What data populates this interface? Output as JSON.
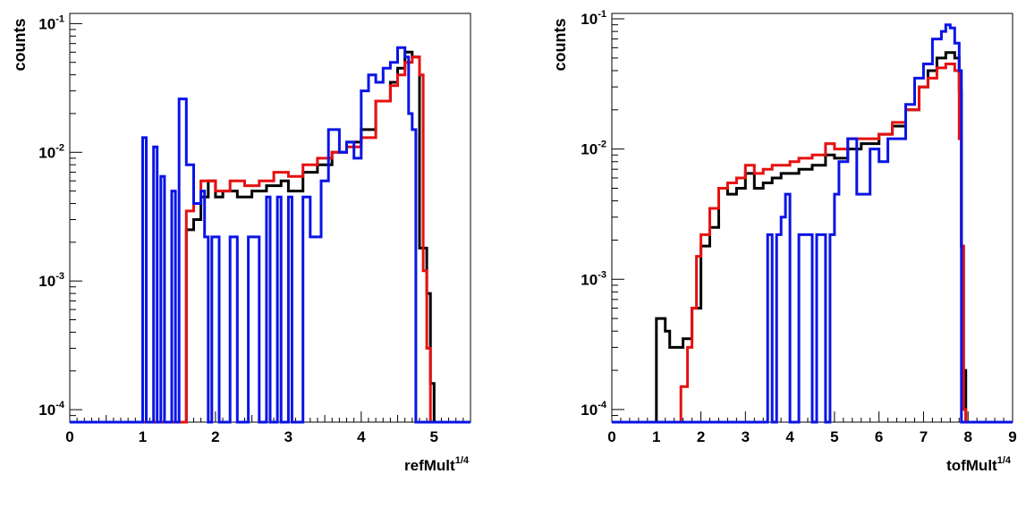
{
  "chart_data": [
    {
      "type": "line",
      "ylabel": "counts",
      "xlabel": "refMult",
      "xlabel_exponent": "1/4",
      "xlim": [
        0,
        5.5
      ],
      "ylim": [
        8e-05,
        0.12
      ],
      "yscale": "log",
      "xticks": [
        0,
        1,
        2,
        3,
        4,
        5
      ],
      "yticks": [
        {
          "value": 0.0001,
          "base": "10",
          "exp": "-4"
        },
        {
          "value": 0.001,
          "base": "10",
          "exp": "-3"
        },
        {
          "value": 0.01,
          "base": "10",
          "exp": "-2"
        },
        {
          "value": 0.1,
          "base": "10",
          "exp": "-1"
        }
      ],
      "grid": false,
      "series": [
        {
          "color": "#000000",
          "points": [
            [
              0,
              8e-05
            ],
            [
              1.0,
              8e-05
            ],
            [
              1.6,
              0.0025
            ],
            [
              1.7,
              0.003
            ],
            [
              1.8,
              0.0045
            ],
            [
              1.9,
              0.006
            ],
            [
              2.0,
              0.0045
            ],
            [
              2.1,
              0.005
            ],
            [
              2.3,
              0.0045
            ],
            [
              2.5,
              0.005
            ],
            [
              2.7,
              0.0055
            ],
            [
              2.9,
              0.006
            ],
            [
              3.0,
              0.005
            ],
            [
              3.2,
              0.007
            ],
            [
              3.4,
              0.008
            ],
            [
              3.6,
              0.01
            ],
            [
              3.8,
              0.012
            ],
            [
              4.0,
              0.015
            ],
            [
              4.2,
              0.025
            ],
            [
              4.4,
              0.035
            ],
            [
              4.5,
              0.045
            ],
            [
              4.6,
              0.06
            ],
            [
              4.7,
              0.055
            ],
            [
              4.8,
              0.0018
            ],
            [
              4.9,
              0.0008
            ],
            [
              4.95,
              0.00016
            ],
            [
              5.0,
              8e-05
            ],
            [
              5.5,
              8e-05
            ]
          ]
        },
        {
          "color": "#e81010",
          "points": [
            [
              0,
              8e-05
            ],
            [
              1.0,
              8e-05
            ],
            [
              1.6,
              0.0035
            ],
            [
              1.7,
              0.004
            ],
            [
              1.8,
              0.006
            ],
            [
              1.9,
              0.006
            ],
            [
              2.0,
              0.005
            ],
            [
              2.2,
              0.006
            ],
            [
              2.4,
              0.0055
            ],
            [
              2.6,
              0.006
            ],
            [
              2.8,
              0.007
            ],
            [
              3.0,
              0.0065
            ],
            [
              3.2,
              0.008
            ],
            [
              3.4,
              0.009
            ],
            [
              3.6,
              0.01
            ],
            [
              3.8,
              0.011
            ],
            [
              4.0,
              0.013
            ],
            [
              4.2,
              0.025
            ],
            [
              4.4,
              0.033
            ],
            [
              4.5,
              0.04
            ],
            [
              4.6,
              0.05
            ],
            [
              4.7,
              0.055
            ],
            [
              4.8,
              0.04
            ],
            [
              4.85,
              0.0012
            ],
            [
              4.9,
              0.0003
            ],
            [
              4.95,
              8e-05
            ],
            [
              5.5,
              8e-05
            ]
          ]
        },
        {
          "color": "#0a14e6",
          "points": [
            [
              0,
              8e-05
            ],
            [
              1.0,
              8e-05
            ],
            [
              1.0,
              0.013
            ],
            [
              1.05,
              8e-05
            ],
            [
              1.15,
              0.011
            ],
            [
              1.2,
              8e-05
            ],
            [
              1.25,
              0.0065
            ],
            [
              1.3,
              8e-05
            ],
            [
              1.4,
              0.005
            ],
            [
              1.45,
              8e-05
            ],
            [
              1.5,
              0.026
            ],
            [
              1.6,
              0.008
            ],
            [
              1.7,
              0.004
            ],
            [
              1.8,
              0.005
            ],
            [
              1.85,
              0.0022
            ],
            [
              1.9,
              8e-05
            ],
            [
              1.95,
              0.0022
            ],
            [
              2.05,
              8e-05
            ],
            [
              2.2,
              0.0022
            ],
            [
              2.3,
              8e-05
            ],
            [
              2.45,
              0.0022
            ],
            [
              2.6,
              8e-05
            ],
            [
              2.7,
              0.0045
            ],
            [
              2.75,
              8e-05
            ],
            [
              2.85,
              0.0045
            ],
            [
              2.9,
              8e-05
            ],
            [
              3.0,
              0.0045
            ],
            [
              3.05,
              8e-05
            ],
            [
              3.2,
              0.0045
            ],
            [
              3.3,
              0.0022
            ],
            [
              3.45,
              0.006
            ],
            [
              3.55,
              0.015
            ],
            [
              3.7,
              0.01
            ],
            [
              3.8,
              0.012
            ],
            [
              3.9,
              0.009
            ],
            [
              4.0,
              0.03
            ],
            [
              4.1,
              0.04
            ],
            [
              4.2,
              0.035
            ],
            [
              4.3,
              0.045
            ],
            [
              4.4,
              0.05
            ],
            [
              4.5,
              0.065
            ],
            [
              4.6,
              0.055
            ],
            [
              4.65,
              0.02
            ],
            [
              4.7,
              0.015
            ],
            [
              4.75,
              8e-05
            ],
            [
              5.5,
              8e-05
            ]
          ]
        }
      ]
    },
    {
      "type": "line",
      "ylabel": "counts",
      "xlabel": "tofMult",
      "xlabel_exponent": "1/4",
      "xlim": [
        0,
        9
      ],
      "ylim": [
        8e-05,
        0.11
      ],
      "yscale": "log",
      "xticks": [
        0,
        1,
        2,
        3,
        4,
        5,
        6,
        7,
        8,
        9
      ],
      "yticks": [
        {
          "value": 0.0001,
          "base": "10",
          "exp": "-4"
        },
        {
          "value": 0.001,
          "base": "10",
          "exp": "-3"
        },
        {
          "value": 0.01,
          "base": "10",
          "exp": "-2"
        },
        {
          "value": 0.1,
          "base": "10",
          "exp": "-1"
        }
      ],
      "grid": false,
      "series": [
        {
          "color": "#000000",
          "points": [
            [
              0,
              8e-05
            ],
            [
              1.0,
              8e-05
            ],
            [
              1.0,
              0.0005
            ],
            [
              1.2,
              0.0004
            ],
            [
              1.3,
              0.0003
            ],
            [
              1.5,
              0.0003
            ],
            [
              1.6,
              0.00035
            ],
            [
              1.8,
              0.0006
            ],
            [
              2.0,
              0.0018
            ],
            [
              2.2,
              0.0025
            ],
            [
              2.4,
              0.005
            ],
            [
              2.6,
              0.0045
            ],
            [
              2.8,
              0.005
            ],
            [
              3.0,
              0.0065
            ],
            [
              3.2,
              0.005
            ],
            [
              3.4,
              0.0055
            ],
            [
              3.6,
              0.006
            ],
            [
              3.8,
              0.0065
            ],
            [
              4.0,
              0.0065
            ],
            [
              4.2,
              0.007
            ],
            [
              4.5,
              0.0075
            ],
            [
              4.8,
              0.009
            ],
            [
              5.0,
              0.0085
            ],
            [
              5.3,
              0.01
            ],
            [
              5.6,
              0.011
            ],
            [
              6.0,
              0.013
            ],
            [
              6.3,
              0.015
            ],
            [
              6.6,
              0.02
            ],
            [
              6.9,
              0.03
            ],
            [
              7.1,
              0.04
            ],
            [
              7.3,
              0.05
            ],
            [
              7.5,
              0.055
            ],
            [
              7.7,
              0.05
            ],
            [
              7.8,
              0.028
            ],
            [
              7.85,
              0.0018
            ],
            [
              7.9,
              0.0002
            ],
            [
              7.95,
              8e-05
            ],
            [
              9,
              8e-05
            ]
          ]
        },
        {
          "color": "#e81010",
          "points": [
            [
              0,
              8e-05
            ],
            [
              1.5,
              8e-05
            ],
            [
              1.55,
              0.00015
            ],
            [
              1.7,
              0.0003
            ],
            [
              1.8,
              0.0006
            ],
            [
              1.9,
              0.0015
            ],
            [
              2.0,
              0.0022
            ],
            [
              2.2,
              0.0035
            ],
            [
              2.4,
              0.005
            ],
            [
              2.6,
              0.0055
            ],
            [
              2.8,
              0.006
            ],
            [
              3.0,
              0.0075
            ],
            [
              3.2,
              0.0065
            ],
            [
              3.4,
              0.007
            ],
            [
              3.6,
              0.0075
            ],
            [
              3.8,
              0.0075
            ],
            [
              4.0,
              0.008
            ],
            [
              4.2,
              0.0085
            ],
            [
              4.5,
              0.009
            ],
            [
              4.8,
              0.011
            ],
            [
              5.0,
              0.01
            ],
            [
              5.3,
              0.012
            ],
            [
              5.6,
              0.012
            ],
            [
              6.0,
              0.013
            ],
            [
              6.3,
              0.016
            ],
            [
              6.6,
              0.02
            ],
            [
              6.9,
              0.03
            ],
            [
              7.1,
              0.035
            ],
            [
              7.3,
              0.042
            ],
            [
              7.5,
              0.045
            ],
            [
              7.7,
              0.04
            ],
            [
              7.8,
              0.012
            ],
            [
              7.85,
              0.0018
            ],
            [
              7.9,
              0.0001
            ],
            [
              7.95,
              8e-05
            ],
            [
              9,
              8e-05
            ]
          ]
        },
        {
          "color": "#0a14e6",
          "points": [
            [
              0,
              8e-05
            ],
            [
              3.5,
              8e-05
            ],
            [
              3.5,
              0.0022
            ],
            [
              3.6,
              8e-05
            ],
            [
              3.7,
              0.0022
            ],
            [
              3.8,
              0.003
            ],
            [
              3.9,
              0.0045
            ],
            [
              4.0,
              8e-05
            ],
            [
              4.2,
              0.0022
            ],
            [
              4.5,
              8e-05
            ],
            [
              4.6,
              0.0022
            ],
            [
              4.8,
              8e-05
            ],
            [
              4.9,
              0.0022
            ],
            [
              5.0,
              0.0045
            ],
            [
              5.1,
              0.008
            ],
            [
              5.3,
              0.012
            ],
            [
              5.5,
              0.0045
            ],
            [
              5.6,
              0.0045
            ],
            [
              5.8,
              0.01
            ],
            [
              6.0,
              0.008
            ],
            [
              6.2,
              0.012
            ],
            [
              6.4,
              0.012
            ],
            [
              6.6,
              0.022
            ],
            [
              6.8,
              0.035
            ],
            [
              7.0,
              0.045
            ],
            [
              7.2,
              0.07
            ],
            [
              7.4,
              0.08
            ],
            [
              7.5,
              0.09
            ],
            [
              7.6,
              0.085
            ],
            [
              7.7,
              0.065
            ],
            [
              7.8,
              0.04
            ],
            [
              7.85,
              8e-05
            ],
            [
              9,
              8e-05
            ]
          ]
        }
      ]
    }
  ]
}
